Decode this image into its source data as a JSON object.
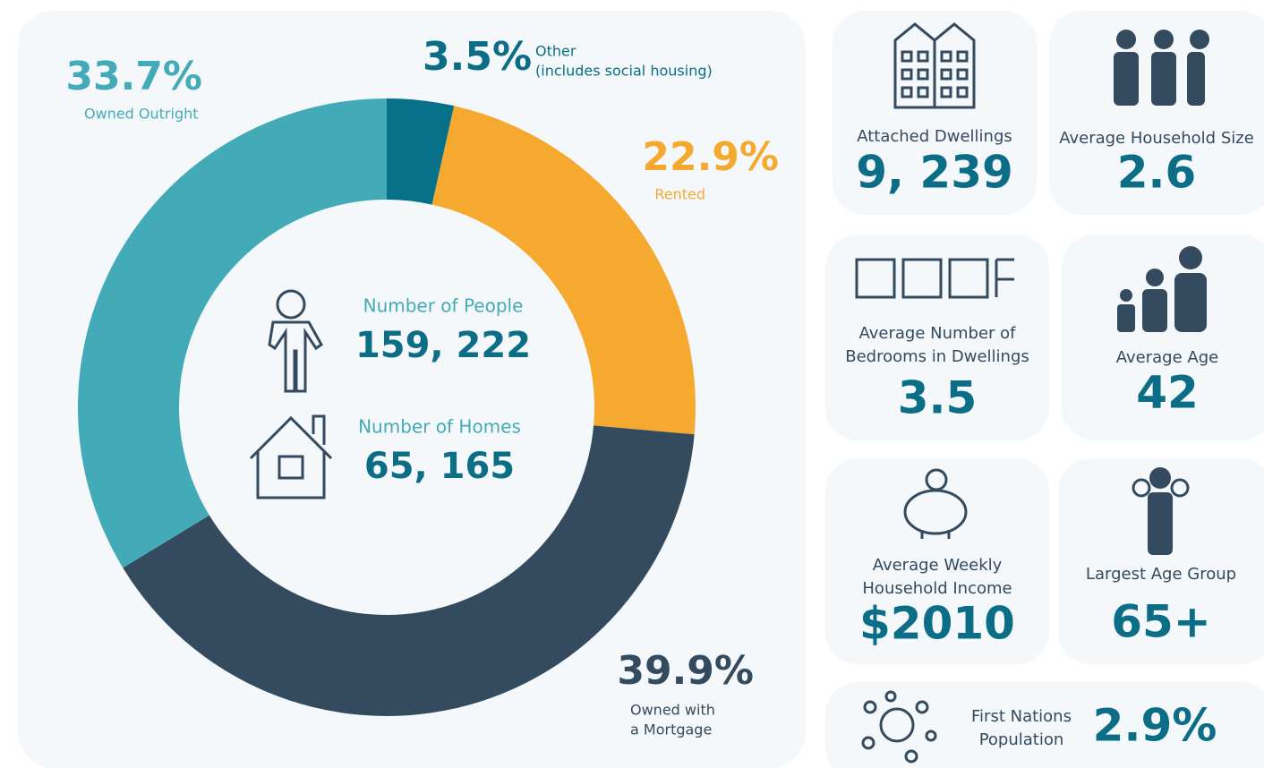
{
  "chart_data": {
    "type": "pie",
    "categories": [
      [
        "Other",
        "(includes social housing)"
      ],
      [
        "Rented"
      ],
      [
        "Owned with",
        "a Mortgage"
      ],
      [
        "Owned Outright"
      ]
    ],
    "values": [
      3.5,
      22.9,
      39.9,
      33.7
    ],
    "value_labels": [
      "3.5%",
      "22.9%",
      "39.9%",
      "33.7%"
    ],
    "colors": [
      "#08718a",
      "#f6a92f",
      "#344a5e",
      "#43abb8"
    ],
    "center": [
      {
        "label": "Number of People",
        "value": "159, 222"
      },
      {
        "label": "Number of Homes",
        "value": "65, 165"
      }
    ]
  },
  "cards": [
    {
      "label": [
        "Attached Dwellings"
      ],
      "value": "9, 239"
    },
    {
      "label": [
        "Average Household Size"
      ],
      "value": "2.6"
    },
    {
      "label": [
        "Average Number of",
        "Bedrooms in Dwellings"
      ],
      "value": "3.5"
    },
    {
      "label": [
        "Average Age"
      ],
      "value": "42"
    },
    {
      "label": [
        "Average Weekly",
        "Household Income"
      ],
      "value": "$2010"
    },
    {
      "label": [
        "Largest Age Group"
      ],
      "value": "65+"
    },
    {
      "label": [
        "First Nations",
        "Population"
      ],
      "value": "2.9%"
    }
  ]
}
